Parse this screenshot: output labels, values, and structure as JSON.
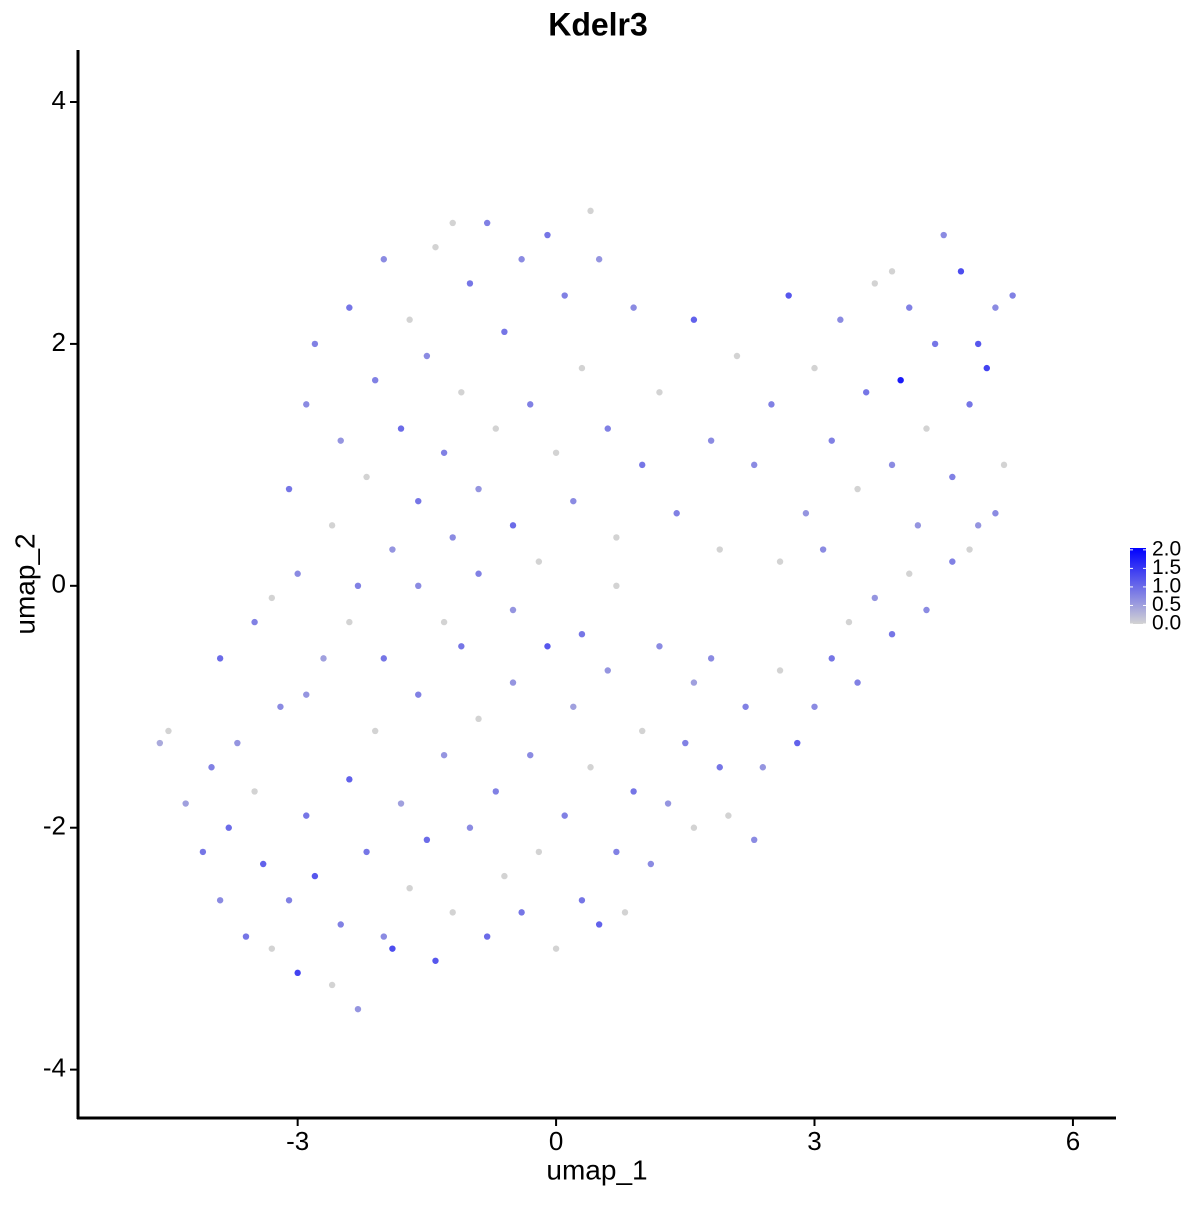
{
  "chart_data": {
    "type": "scatter",
    "title": "Kdelr3",
    "x_label": "umap_1",
    "y_label": "umap_2",
    "xlim": [
      -5.55,
      6.5
    ],
    "ylim": [
      -4.4,
      4.43
    ],
    "xticks": [
      -3,
      0,
      3,
      6
    ],
    "yticks": [
      -4,
      -2,
      0,
      2,
      4
    ],
    "low_color": "#d3d3d3",
    "high_color": "#0000ff",
    "color_lim": [
      0,
      2.05
    ],
    "color_ticks": [
      {
        "value": 0,
        "label": "0.0"
      },
      {
        "value": 0.5,
        "label": "0.5"
      },
      {
        "value": 1,
        "label": "1.0"
      },
      {
        "value": 1.5,
        "label": "1.5"
      },
      {
        "value": 2,
        "label": "2.0"
      }
    ],
    "x": [
      -4.6,
      -4.5,
      -4.3,
      -4.1,
      -4.0,
      -3.9,
      -3.8,
      -3.7,
      -3.6,
      -3.5,
      -3.4,
      -3.3,
      -3.2,
      -3.1,
      -3.0,
      -2.9,
      -2.8,
      -2.7,
      -2.6,
      -2.5,
      -2.4,
      -2.3,
      -2.2,
      -2.1,
      -2.0,
      -1.9,
      -1.8,
      -1.7,
      -1.6,
      -1.5,
      -1.4,
      -1.3,
      -1.2,
      -1.1,
      -1.0,
      -0.9,
      -0.8,
      -0.7,
      -0.6,
      -0.5,
      -0.4,
      -0.3,
      -0.2,
      -0.1,
      0.0,
      0.1,
      0.2,
      0.3,
      0.4,
      0.5,
      0.6,
      0.7,
      0.8,
      0.9,
      1.0,
      1.1,
      1.3,
      1.5,
      1.6,
      -3.9,
      -3.5,
      -3.3,
      -3.0,
      -2.9,
      -2.4,
      -2.0,
      -1.6,
      -1.3,
      -0.9,
      -0.5,
      0.3,
      0.7,
      1.2,
      1.6,
      1.8,
      2.0,
      2.2,
      2.4,
      2.6,
      2.8,
      3.0,
      3.2,
      3.4,
      3.5,
      3.7,
      3.9,
      4.1,
      4.3,
      4.6,
      4.9,
      2.3,
      1.9,
      -3.1,
      -2.9,
      -2.8,
      -2.6,
      -2.5,
      -2.4,
      -2.2,
      -2.1,
      -2.0,
      -1.9,
      -1.8,
      -1.7,
      -1.6,
      -1.5,
      -1.4,
      -1.3,
      -1.2,
      -1.1,
      -1.0,
      -0.9,
      -0.8,
      -0.7,
      -0.6,
      -0.5,
      -0.4,
      -0.3,
      -0.2,
      -0.1,
      0.0,
      0.1,
      0.2,
      0.3,
      0.5,
      0.6,
      0.7,
      0.9,
      1.0,
      1.2,
      1.4,
      1.6,
      1.8,
      1.9,
      -2.3,
      0.4,
      -1.2,
      2.1,
      2.3,
      2.5,
      2.7,
      2.9,
      3.0,
      3.2,
      3.3,
      3.5,
      3.6,
      3.7,
      3.9,
      4.0,
      4.1,
      4.2,
      4.3,
      4.4,
      4.5,
      4.6,
      4.7,
      4.8,
      4.9,
      5.0,
      5.1,
      5.2,
      5.3,
      5.1,
      4.8,
      3.1,
      2.6,
      3.9
    ],
    "values": [
      -1.3,
      -1.2,
      -1.8,
      -2.2,
      -1.5,
      -2.6,
      -2.0,
      -1.3,
      -2.9,
      -1.7,
      -2.3,
      -3.0,
      -1.0,
      -2.6,
      -3.2,
      -1.9,
      -2.4,
      -0.6,
      -3.3,
      -2.8,
      -1.6,
      -3.5,
      -2.2,
      -1.2,
      -2.9,
      -3.0,
      -1.8,
      -2.5,
      -0.9,
      -2.1,
      -3.1,
      -1.4,
      -2.7,
      -0.5,
      -2.0,
      -1.1,
      -2.9,
      -1.7,
      -2.4,
      -0.8,
      -2.7,
      -1.4,
      -2.2,
      -0.5,
      -3.0,
      -1.9,
      -1.0,
      -2.6,
      -1.5,
      -2.8,
      -0.7,
      -2.2,
      -2.7,
      -1.7,
      -1.2,
      -2.3,
      -1.8,
      -1.3,
      -2.0,
      -0.6,
      -0.3,
      -0.1,
      0.1,
      -0.9,
      -0.3,
      -0.6,
      0.0,
      -0.3,
      0.1,
      -0.2,
      -0.4,
      0.0,
      -0.5,
      -0.8,
      -0.6,
      -1.9,
      -1.0,
      -1.5,
      -0.7,
      -1.3,
      -1.0,
      -0.6,
      -0.3,
      -0.8,
      -0.1,
      -0.4,
      0.1,
      -0.2,
      0.2,
      0.5,
      -2.1,
      -1.5,
      0.8,
      1.5,
      2.0,
      0.5,
      1.2,
      2.3,
      0.9,
      1.7,
      2.7,
      0.3,
      1.3,
      2.2,
      0.7,
      1.9,
      2.8,
      1.1,
      0.4,
      1.6,
      2.5,
      0.8,
      3.0,
      1.3,
      2.1,
      0.5,
      2.7,
      1.5,
      0.2,
      2.9,
      1.1,
      2.4,
      0.7,
      1.8,
      2.7,
      1.3,
      0.4,
      2.3,
      1.0,
      1.6,
      0.6,
      2.2,
      1.2,
      0.3,
      0.0,
      3.1,
      3.0,
      1.9,
      1.0,
      1.5,
      2.4,
      0.6,
      1.8,
      1.2,
      2.2,
      0.8,
      1.6,
      2.5,
      1.0,
      1.7,
      2.3,
      0.5,
      1.3,
      2.0,
      2.9,
      0.9,
      2.6,
      1.5,
      2.0,
      1.8,
      2.3,
      1.0,
      2.4,
      0.6,
      0.3,
      0.3,
      0.2,
      2.6
    ],
    "expression": [
      0.4,
      0,
      0.5,
      0.9,
      0.8,
      0.7,
      1.0,
      0.6,
      0.9,
      0,
      1.1,
      0,
      0.7,
      0.8,
      1.4,
      0.9,
      1.2,
      0.5,
      0,
      0.8,
      1.1,
      0.6,
      0.9,
      0,
      0.7,
      1.3,
      0.5,
      0,
      0.8,
      1.0,
      1.2,
      0.6,
      0,
      0.9,
      0.7,
      0,
      1.0,
      0.8,
      0,
      0.6,
      0.9,
      0.7,
      0,
      1.2,
      0,
      0.8,
      0.5,
      0.9,
      0,
      1.1,
      0.6,
      0.8,
      0,
      0.9,
      0,
      0.7,
      0.6,
      0.8,
      0,
      1.0,
      0.8,
      0,
      0.7,
      0.6,
      0,
      0.9,
      0.7,
      0,
      0.8,
      0.6,
      0.9,
      0,
      0.7,
      0.5,
      0.7,
      0,
      0.8,
      0.6,
      0,
      1.1,
      0.7,
      0.9,
      0,
      0.8,
      0.6,
      0.9,
      0,
      0.7,
      0.8,
      0.6,
      0.7,
      0.9,
      0.9,
      0.7,
      0.8,
      0,
      0.6,
      0.9,
      0,
      0.8,
      0.7,
      0.6,
      1.0,
      0,
      0.9,
      0.7,
      0,
      0.8,
      0.7,
      0,
      0.9,
      0.6,
      0.8,
      0,
      0.9,
      1.0,
      0.7,
      0.8,
      0,
      0.9,
      0,
      0.8,
      0.7,
      0,
      0.6,
      0.8,
      0,
      0.7,
      0.9,
      0,
      0.8,
      1.1,
      0.7,
      0,
      0.8,
      0,
      0,
      0,
      0.7,
      0.8,
      1.2,
      0.6,
      0,
      0.8,
      0.7,
      0,
      0.9,
      0,
      0.7,
      1.8,
      0.8,
      0.6,
      0,
      0.9,
      0.7,
      0.8,
      1.3,
      0.9,
      1.2,
      1.4,
      0.7,
      0,
      0.8,
      0.7,
      0,
      0.7,
      0,
      0
    ]
  }
}
